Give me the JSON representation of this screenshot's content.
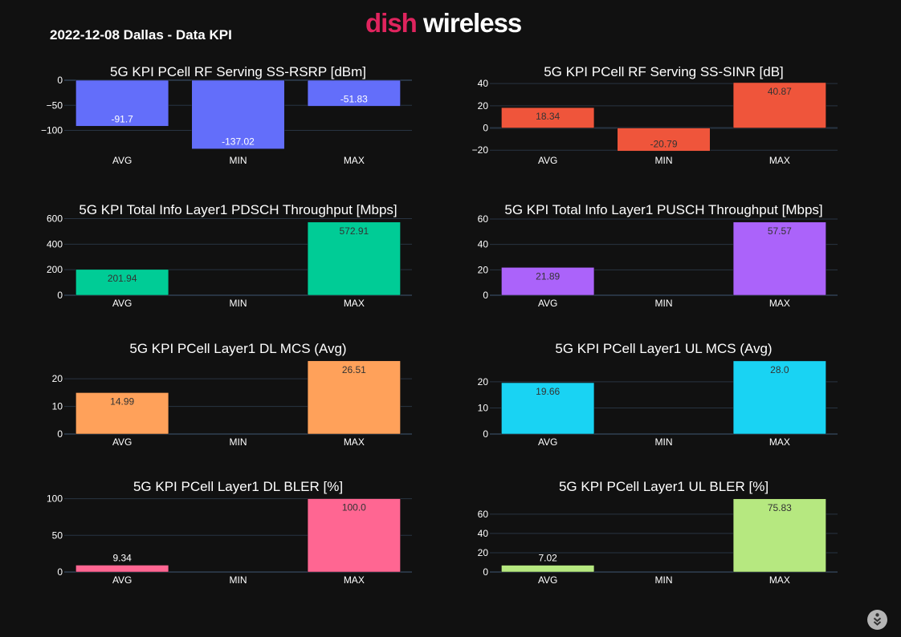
{
  "header": {
    "title": "2022-12-08 Dallas - Data KPI",
    "logo_brand": "dish",
    "logo_product": "wireless"
  },
  "colors": {
    "background": "#111111",
    "gridline": "#283442",
    "brand": "#e0245e"
  },
  "chart_data": [
    {
      "type": "bar",
      "title": "5G KPI PCell RF Serving SS-RSRP [dBm]",
      "categories": [
        "AVG",
        "MIN",
        "MAX"
      ],
      "values": [
        -91.7,
        -137.02,
        -51.83
      ],
      "labels": [
        "-91.7",
        "-137.02",
        "-51.83"
      ],
      "yticks": [
        0,
        -50,
        -100
      ],
      "ytick_labels": [
        "0",
        "−50",
        "−100"
      ],
      "ylim": [
        -144,
        0
      ],
      "color": "#636efa",
      "label_color": "#ffffff",
      "label_position": "inside-end",
      "grid": true
    },
    {
      "type": "bar",
      "title": "5G KPI PCell RF Serving SS-SINR [dB]",
      "categories": [
        "AVG",
        "MIN",
        "MAX"
      ],
      "values": [
        18.34,
        -20.79,
        40.87
      ],
      "labels": [
        "18.34",
        "-20.79",
        "40.87"
      ],
      "yticks": [
        40,
        20,
        0,
        -20
      ],
      "ytick_labels": [
        "40",
        "20",
        "0",
        "−20"
      ],
      "ylim": [
        -22,
        43
      ],
      "color": "#ef553b",
      "label_color": "#333333",
      "label_position": "inside-end",
      "grid": true
    },
    {
      "type": "bar",
      "title": "5G KPI Total Info Layer1 PDSCH Throughput [Mbps]",
      "categories": [
        "AVG",
        "MIN",
        "MAX"
      ],
      "values": [
        201.94,
        0,
        572.91
      ],
      "labels": [
        "201.94",
        "",
        "572.91"
      ],
      "yticks": [
        600,
        400,
        200,
        0
      ],
      "ytick_labels": [
        "600",
        "400",
        "200",
        "0"
      ],
      "ylim": [
        0,
        603
      ],
      "color": "#00cc96",
      "label_color": "#333333",
      "label_position": "inside-end",
      "grid": true
    },
    {
      "type": "bar",
      "title": "5G KPI Total Info Layer1 PUSCH Throughput [Mbps]",
      "categories": [
        "AVG",
        "MIN",
        "MAX"
      ],
      "values": [
        21.89,
        0,
        57.57
      ],
      "labels": [
        "21.89",
        "",
        "57.57"
      ],
      "yticks": [
        60,
        40,
        20,
        0
      ],
      "ytick_labels": [
        "60",
        "40",
        "20",
        "0"
      ],
      "ylim": [
        0,
        60.6
      ],
      "color": "#ab63fa",
      "label_color": "#333333",
      "label_position": "inside-end",
      "grid": true
    },
    {
      "type": "bar",
      "title": "5G KPI PCell Layer1 DL MCS (Avg)",
      "categories": [
        "AVG",
        "MIN",
        "MAX"
      ],
      "values": [
        14.99,
        0,
        26.51
      ],
      "labels": [
        "14.99",
        "",
        "26.51"
      ],
      "yticks": [
        20,
        10,
        0
      ],
      "ytick_labels": [
        "20",
        "10",
        "0"
      ],
      "ylim": [
        0,
        27.9
      ],
      "color": "#ffa15a",
      "label_color": "#333333",
      "label_position": "inside-end",
      "grid": true
    },
    {
      "type": "bar",
      "title": "5G KPI PCell Layer1 UL MCS (Avg)",
      "categories": [
        "AVG",
        "MIN",
        "MAX"
      ],
      "values": [
        19.66,
        0,
        28.0
      ],
      "labels": [
        "19.66",
        "",
        "28.0"
      ],
      "yticks": [
        20,
        10,
        0
      ],
      "ytick_labels": [
        "20",
        "10",
        "0"
      ],
      "ylim": [
        0,
        29.5
      ],
      "color": "#19d3f3",
      "label_color": "#333333",
      "label_position": "inside-end",
      "grid": true
    },
    {
      "type": "bar",
      "title": "5G KPI PCell Layer1 DL BLER [%]",
      "categories": [
        "AVG",
        "MIN",
        "MAX"
      ],
      "values": [
        9.34,
        0,
        100.0
      ],
      "labels": [
        "9.34",
        "",
        "100.0"
      ],
      "yticks": [
        100,
        50,
        0
      ],
      "ytick_labels": [
        "100",
        "50",
        "0"
      ],
      "ylim": [
        0,
        105
      ],
      "color": "#ff6692",
      "label_color": "#333333",
      "label_position": "inside-end",
      "grid": true
    },
    {
      "type": "bar",
      "title": "5G KPI PCell Layer1 UL BLER [%]",
      "categories": [
        "AVG",
        "MIN",
        "MAX"
      ],
      "values": [
        7.02,
        0,
        75.83
      ],
      "labels": [
        "7.02",
        "",
        "75.83"
      ],
      "yticks": [
        60,
        40,
        20,
        0
      ],
      "ytick_labels": [
        "60",
        "40",
        "20",
        "0"
      ],
      "ylim": [
        0,
        79.8
      ],
      "color": "#b6e880",
      "label_color": "#333333",
      "label_position": "inside-end",
      "grid": true
    }
  ]
}
